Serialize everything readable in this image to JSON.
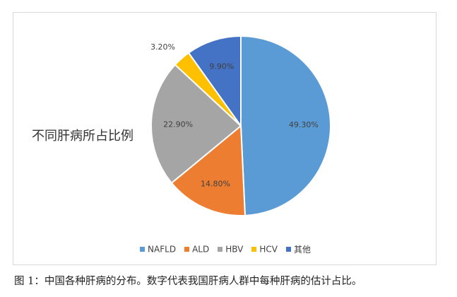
{
  "chart_data": {
    "type": "pie",
    "title": "不同肝病所占比例",
    "categories": [
      "NAFLD",
      "ALD",
      "HBV",
      "HCV",
      "其他"
    ],
    "values": [
      49.3,
      14.8,
      22.9,
      3.2,
      9.9
    ],
    "data_labels": [
      "49.30%",
      "14.80%",
      "22.90%",
      "3.20%",
      "9.90%"
    ],
    "colors": [
      "#5B9BD5",
      "#ED7D31",
      "#A5A5A5",
      "#FFC000",
      "#4472C4"
    ],
    "legend_position": "bottom",
    "start_angle": "top",
    "direction": "clockwise"
  },
  "caption": "图 1：中国各种肝病的分布。数字代表我国肝病人群中每种肝病的估计占比。"
}
